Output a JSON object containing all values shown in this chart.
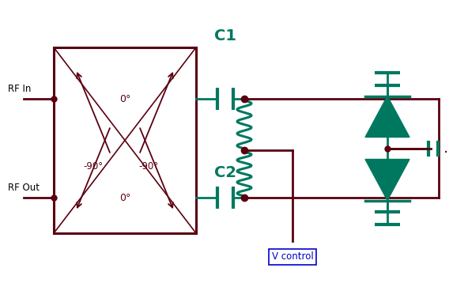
{
  "bg_color": "#ffffff",
  "dark_color": "#5a0010",
  "green_color": "#007860",
  "blue_color": "#0000cc",
  "fig_w": 5.92,
  "fig_h": 3.58,
  "rf_in_label": "RF In",
  "rf_out_label": "RF Out",
  "c1_label": "C1",
  "c2_label": "C2",
  "vctrl_label": "V control",
  "deg0": "0°",
  "deg90": "-90°"
}
